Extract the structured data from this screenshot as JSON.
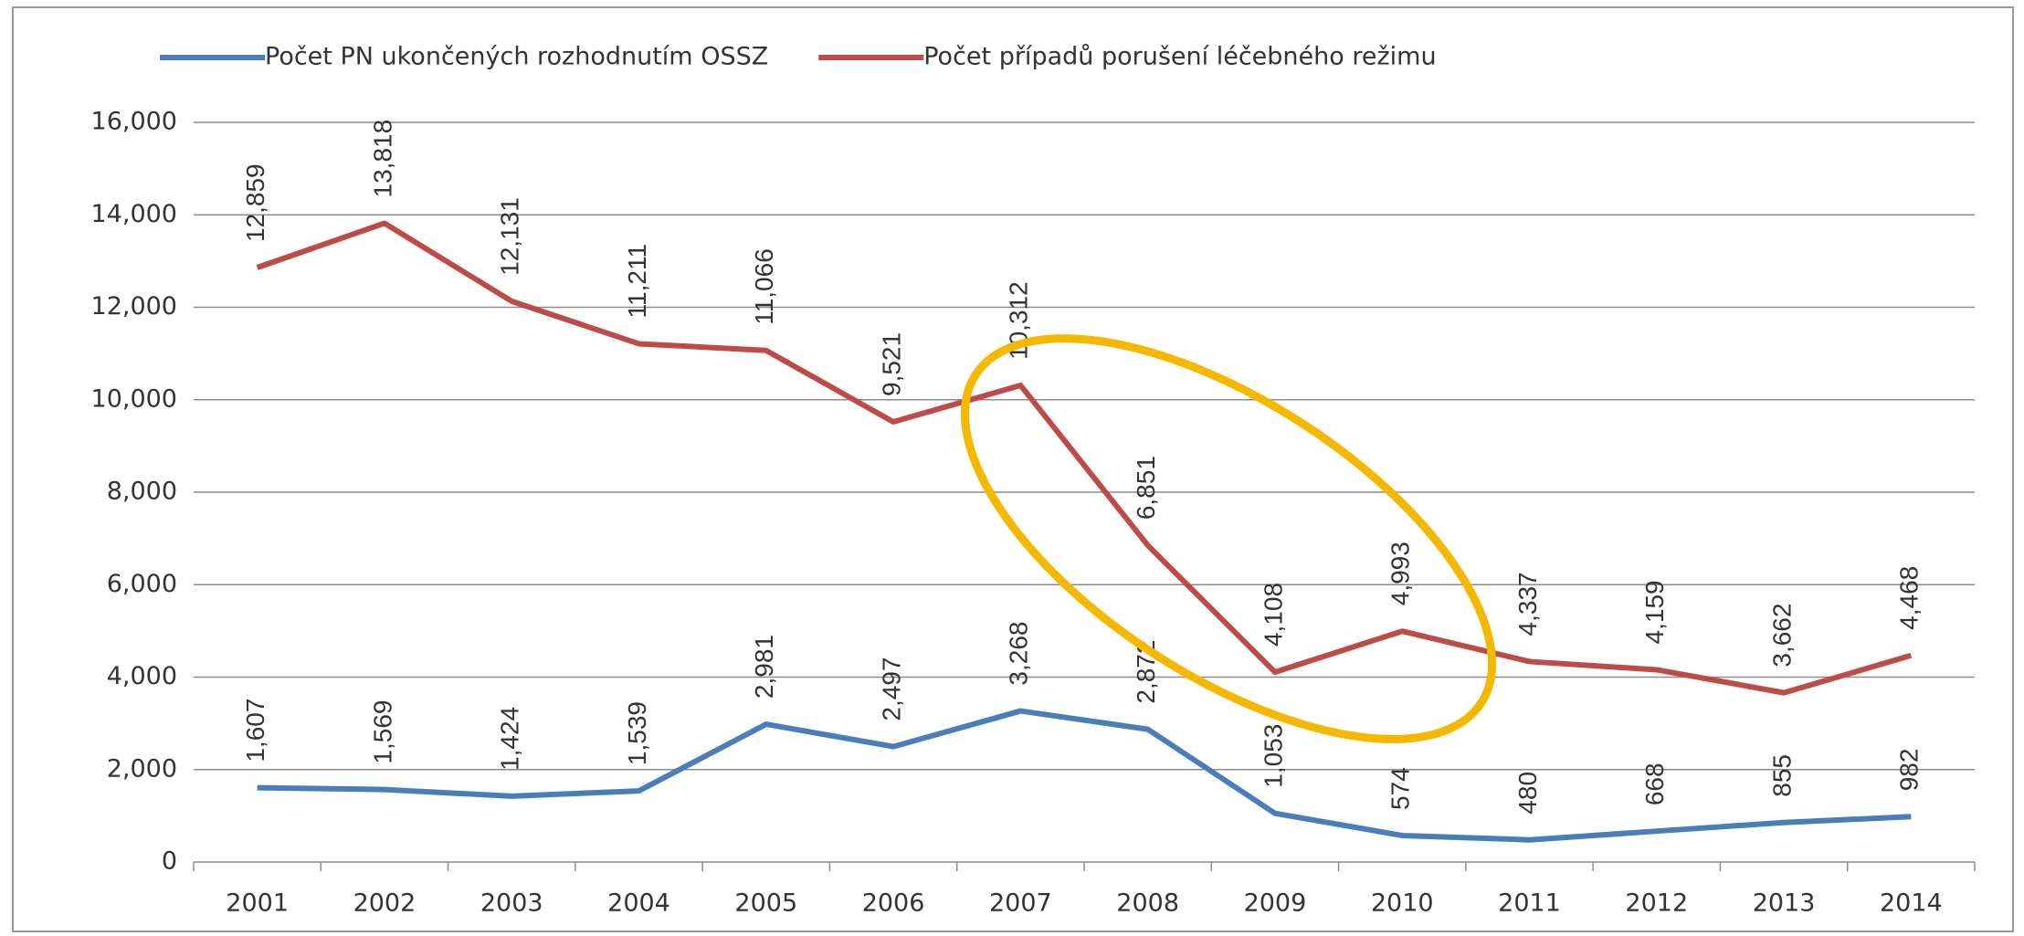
{
  "chart_data": {
    "type": "line",
    "categories": [
      "2001",
      "2002",
      "2003",
      "2004",
      "2005",
      "2006",
      "2007",
      "2008",
      "2009",
      "2010",
      "2011",
      "2012",
      "2013",
      "2014"
    ],
    "series": [
      {
        "name": "Počet PN ukončených rozhodnutím OSSZ",
        "color": "#4a7ebb",
        "values": [
          1607,
          1569,
          1424,
          1539,
          2981,
          2497,
          3268,
          2872,
          1053,
          574,
          480,
          668,
          855,
          982
        ],
        "value_labels": [
          "1,607",
          "1,569",
          "1,424",
          "1,539",
          "2,981",
          "2,497",
          "3,268",
          "2,872",
          "1,053",
          "574",
          "480",
          "668",
          "855",
          "982"
        ]
      },
      {
        "name": "Počet případů porušení léčebného režimu",
        "color": "#be4b48",
        "values": [
          12859,
          13818,
          12131,
          11211,
          11066,
          9521,
          10312,
          6851,
          4108,
          4993,
          4337,
          4159,
          3662,
          4468
        ],
        "value_labels": [
          "12,859",
          "13,818",
          "12,131",
          "11,211",
          "11,066",
          "9,521",
          "10,312",
          "6,851",
          "4,108",
          "4,993",
          "4,337",
          "4,159",
          "3,662",
          "4,468"
        ]
      }
    ],
    "ylim": [
      0,
      16000
    ],
    "yticks": [
      0,
      {
        "value": 2000,
        "label": "2,000"
      },
      {
        "value": 4000,
        "label": "4,000"
      },
      {
        "value": 6000,
        "label": "6,000"
      },
      {
        "value": 8000,
        "label": "8,000"
      },
      {
        "value": 10000,
        "label": "10,000"
      },
      {
        "value": 12000,
        "label": "12,000"
      },
      {
        "value": 14000,
        "label": "14,000"
      },
      {
        "value": 16000,
        "label": "16,000"
      }
    ],
    "grid": true,
    "legend": "top"
  }
}
